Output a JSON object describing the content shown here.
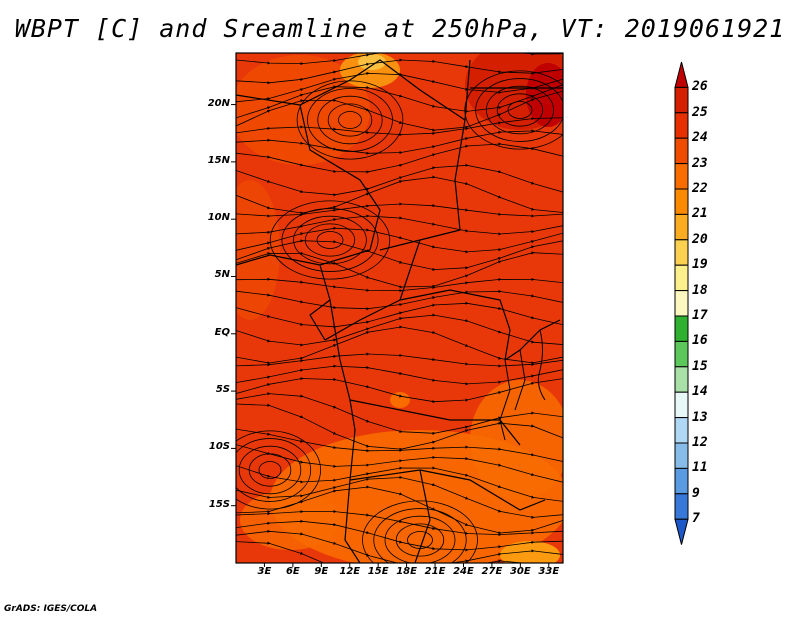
{
  "title": "WBPT [C] and Sreamline at 250hPa, VT: 2019061921",
  "credit": "GrADS: IGES/COLA",
  "map": {
    "lat_labels": [
      "20N",
      "15N",
      "10N",
      "5N",
      "EQ",
      "5S",
      "10S",
      "15S"
    ],
    "lat_values": [
      20,
      15,
      10,
      5,
      0,
      -5,
      -10,
      -15
    ],
    "lon_labels": [
      "3E",
      "6E",
      "9E",
      "12E",
      "15E",
      "18E",
      "21E",
      "24E",
      "27E",
      "30E",
      "33E"
    ],
    "lon_values": [
      3,
      6,
      9,
      12,
      15,
      18,
      21,
      24,
      27,
      30,
      33
    ],
    "lon_range": [
      0,
      34.5
    ],
    "lat_range": [
      -20,
      24.5
    ]
  },
  "colorbar": {
    "labels": [
      "26",
      "25",
      "24",
      "23",
      "22",
      "21",
      "20",
      "19",
      "18",
      "17",
      "16",
      "15",
      "14",
      "13",
      "12",
      "11",
      "9",
      "7"
    ],
    "colors": [
      "#c00000",
      "#d42000",
      "#e63000",
      "#f04c00",
      "#f86c00",
      "#fc8a00",
      "#fcac20",
      "#fcd050",
      "#fcf08c",
      "#fcf8c0",
      "#30b030",
      "#5cc85c",
      "#a8e0a8",
      "#e8f8f8",
      "#b0d8f4",
      "#88bce8",
      "#5a9ae0",
      "#3878d8",
      "#1c58c8"
    ]
  }
}
